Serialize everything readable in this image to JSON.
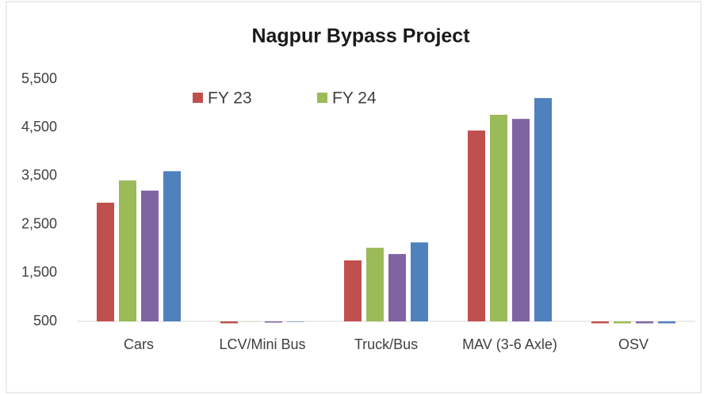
{
  "chart_data": {
    "type": "bar",
    "title": "Nagpur Bypass Project",
    "categories": [
      "Cars",
      "LCV/Mini Bus",
      "Truck/Bus",
      "MAV (3-6 Axle)",
      "OSV"
    ],
    "series": [
      {
        "name": "FY 23",
        "color": "#c0504d",
        "values": [
          2950,
          460,
          1760,
          4440,
          460
        ]
      },
      {
        "name": "FY 24",
        "color": "#9bbb59",
        "values": [
          3410,
          495,
          2020,
          4765,
          460
        ]
      },
      {
        "color": "#8064a2",
        "values": [
          3200,
          475,
          1890,
          4680,
          460
        ]
      },
      {
        "color": "#4f81bd",
        "values": [
          3600,
          490,
          2130,
          5110,
          460
        ]
      }
    ],
    "ylim": [
      500,
      5500
    ],
    "yticks": [
      {
        "value": 500,
        "label": "500"
      },
      {
        "value": 1500,
        "label": "1,500"
      },
      {
        "value": 2500,
        "label": "2,500"
      },
      {
        "value": 3500,
        "label": "3,500"
      },
      {
        "value": 4500,
        "label": "4,500"
      },
      {
        "value": 5500,
        "label": "5,500"
      }
    ],
    "grid": false,
    "legend": "top"
  }
}
